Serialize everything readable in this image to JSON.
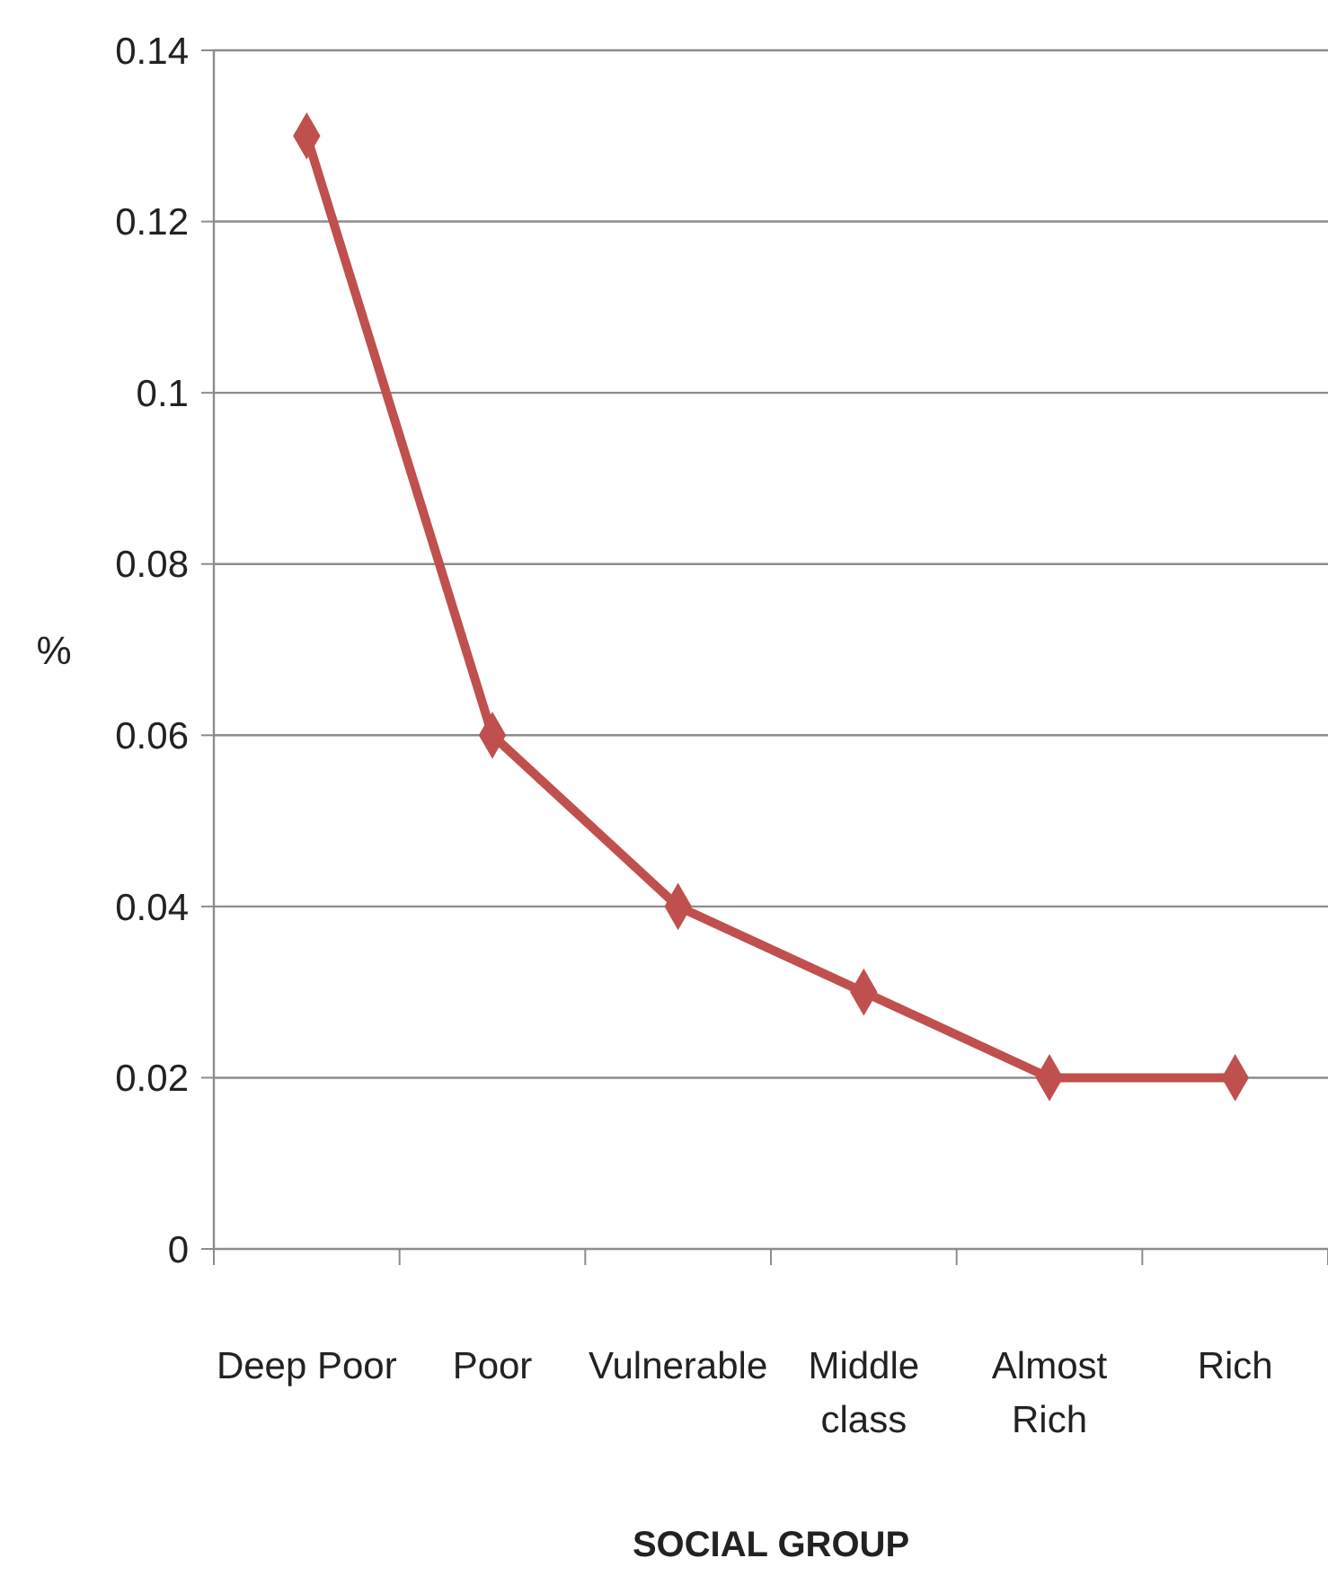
{
  "chart_data": {
    "type": "line",
    "xlabel": "SOCIAL GROUP",
    "ylabel": "%",
    "categories": [
      "Deep Poor",
      "Poor",
      "Vulnerable",
      "Middle class",
      "Almost Rich",
      "Rich"
    ],
    "series": [
      {
        "color": "#c0504d",
        "values": [
          0.13,
          0.06,
          0.04,
          0.03,
          0.02,
          0.02
        ]
      }
    ],
    "ylim": [
      0,
      0.14
    ],
    "yticks": [
      0,
      0.02,
      0.04,
      0.06,
      0.08,
      0.1,
      0.12,
      0.14
    ],
    "grid": "y",
    "marker": "diamond",
    "line_style": "solid"
  }
}
